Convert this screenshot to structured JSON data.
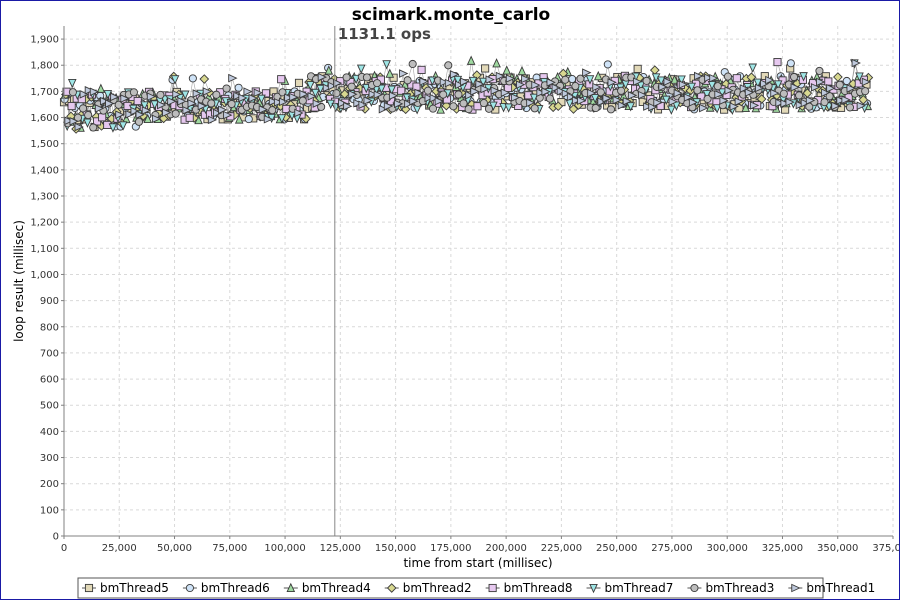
{
  "chart_data": {
    "type": "scatter",
    "title": "scimark.monte_carlo",
    "xlabel": "time from start (millisec)",
    "ylabel": "loop result (millisec)",
    "xlim": [
      0,
      375000
    ],
    "ylim": [
      0,
      1950
    ],
    "x_ticks": [
      0,
      25000,
      50000,
      75000,
      100000,
      125000,
      150000,
      175000,
      200000,
      225000,
      250000,
      275000,
      300000,
      325000,
      350000,
      375000
    ],
    "x_tick_labels": [
      "0",
      "25,000",
      "50,000",
      "75,000",
      "100,000",
      "125,000",
      "150,000",
      "175,000",
      "200,000",
      "225,000",
      "250,000",
      "275,000",
      "300,000",
      "325,000",
      "350,000",
      "375,000"
    ],
    "y_ticks": [
      0,
      100,
      200,
      300,
      400,
      500,
      600,
      700,
      800,
      900,
      1000,
      1100,
      1200,
      1300,
      1400,
      1500,
      1600,
      1700,
      1800,
      1900
    ],
    "y_tick_labels": [
      "0",
      "100",
      "200",
      "300",
      "400",
      "500",
      "600",
      "700",
      "800",
      "900",
      "1,000",
      "1,100",
      "1,200",
      "1,300",
      "1,400",
      "1,500",
      "1,600",
      "1,700",
      "1,800",
      "1,900"
    ],
    "grid": true,
    "legend_position": "bottom",
    "annotation": {
      "text": "1131.1 ops",
      "x": 122500
    },
    "x_end": 364000,
    "series": [
      {
        "name": "bmThread5",
        "marker": "square",
        "color": "#e2d9b8",
        "segments": [
          {
            "x0": 0,
            "x1": 35000,
            "ylo": 1555,
            "yhi": 1700
          },
          {
            "x0": 35000,
            "x1": 110000,
            "ylo": 1590,
            "yhi": 1700
          },
          {
            "x0": 110000,
            "x1": 364000,
            "ylo": 1630,
            "yhi": 1760
          }
        ]
      },
      {
        "name": "bmThread6",
        "marker": "circle",
        "color": "#cfe3f7",
        "segments": [
          {
            "x0": 0,
            "x1": 35000,
            "ylo": 1560,
            "yhi": 1700
          },
          {
            "x0": 35000,
            "x1": 110000,
            "ylo": 1590,
            "yhi": 1700
          },
          {
            "x0": 110000,
            "x1": 364000,
            "ylo": 1630,
            "yhi": 1760
          }
        ]
      },
      {
        "name": "bmThread4",
        "marker": "triangle-up",
        "color": "#9fd9a0",
        "segments": [
          {
            "x0": 0,
            "x1": 35000,
            "ylo": 1560,
            "yhi": 1710
          },
          {
            "x0": 35000,
            "x1": 110000,
            "ylo": 1590,
            "yhi": 1700
          },
          {
            "x0": 110000,
            "x1": 364000,
            "ylo": 1630,
            "yhi": 1760
          }
        ]
      },
      {
        "name": "bmThread2",
        "marker": "diamond",
        "color": "#d8d890",
        "segments": [
          {
            "x0": 0,
            "x1": 35000,
            "ylo": 1550,
            "yhi": 1700
          },
          {
            "x0": 35000,
            "x1": 110000,
            "ylo": 1590,
            "yhi": 1700
          },
          {
            "x0": 110000,
            "x1": 364000,
            "ylo": 1630,
            "yhi": 1760
          }
        ]
      },
      {
        "name": "bmThread8",
        "marker": "square",
        "color": "#e6c8ef",
        "segments": [
          {
            "x0": 0,
            "x1": 35000,
            "ylo": 1570,
            "yhi": 1700
          },
          {
            "x0": 35000,
            "x1": 110000,
            "ylo": 1590,
            "yhi": 1700
          },
          {
            "x0": 110000,
            "x1": 364000,
            "ylo": 1630,
            "yhi": 1760
          }
        ]
      },
      {
        "name": "bmThread7",
        "marker": "triangle-down",
        "color": "#9fe6e6",
        "segments": [
          {
            "x0": 0,
            "x1": 35000,
            "ylo": 1560,
            "yhi": 1700
          },
          {
            "x0": 35000,
            "x1": 110000,
            "ylo": 1590,
            "yhi": 1700
          },
          {
            "x0": 110000,
            "x1": 364000,
            "ylo": 1630,
            "yhi": 1760
          }
        ]
      },
      {
        "name": "bmThread3",
        "marker": "circle",
        "color": "#bdbdbd",
        "segments": [
          {
            "x0": 0,
            "x1": 35000,
            "ylo": 1560,
            "yhi": 1700
          },
          {
            "x0": 35000,
            "x1": 110000,
            "ylo": 1590,
            "yhi": 1700
          },
          {
            "x0": 110000,
            "x1": 364000,
            "ylo": 1630,
            "yhi": 1760
          }
        ]
      },
      {
        "name": "bmThread1",
        "marker": "triangle-right",
        "color": "#bfc9dc",
        "segments": [
          {
            "x0": 0,
            "x1": 35000,
            "ylo": 1560,
            "yhi": 1700
          },
          {
            "x0": 35000,
            "x1": 110000,
            "ylo": 1590,
            "yhi": 1700
          },
          {
            "x0": 110000,
            "x1": 364000,
            "ylo": 1630,
            "yhi": 1760
          }
        ]
      }
    ]
  }
}
